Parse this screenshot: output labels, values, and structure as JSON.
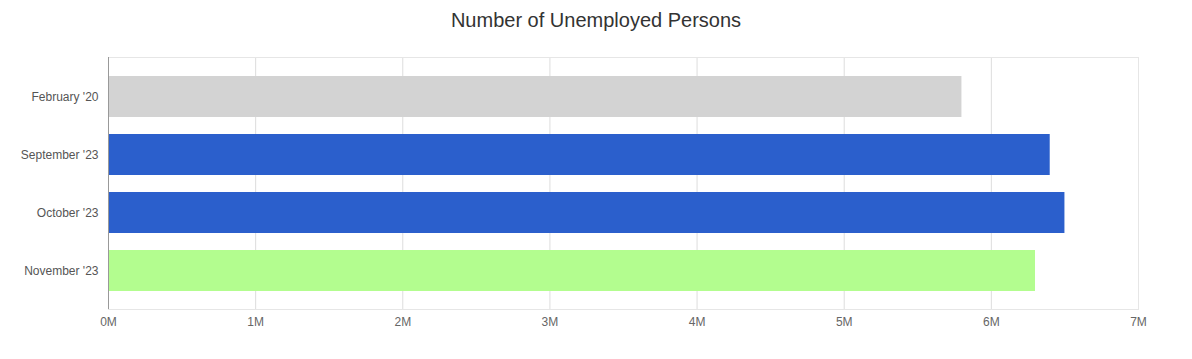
{
  "chart_data": {
    "type": "bar",
    "title": "Number of Unemployed Persons",
    "orientation": "horizontal",
    "categories": [
      "February '20",
      "September '23",
      "October '23",
      "November '23"
    ],
    "values": [
      5800000,
      6400000,
      6500000,
      6300000
    ],
    "colors": [
      "#d3d3d3",
      "#2b5fcc",
      "#2b5fcc",
      "#b3fd8f"
    ],
    "xlim": [
      0,
      7000000
    ],
    "xticks": [
      {
        "value": 0,
        "label": "0M"
      },
      {
        "value": 1000000,
        "label": "1M"
      },
      {
        "value": 2000000,
        "label": "2M"
      },
      {
        "value": 3000000,
        "label": "3M"
      },
      {
        "value": 4000000,
        "label": "4M"
      },
      {
        "value": 5000000,
        "label": "5M"
      },
      {
        "value": 6000000,
        "label": "6M"
      },
      {
        "value": 7000000,
        "label": "7M"
      }
    ],
    "grid": true
  }
}
